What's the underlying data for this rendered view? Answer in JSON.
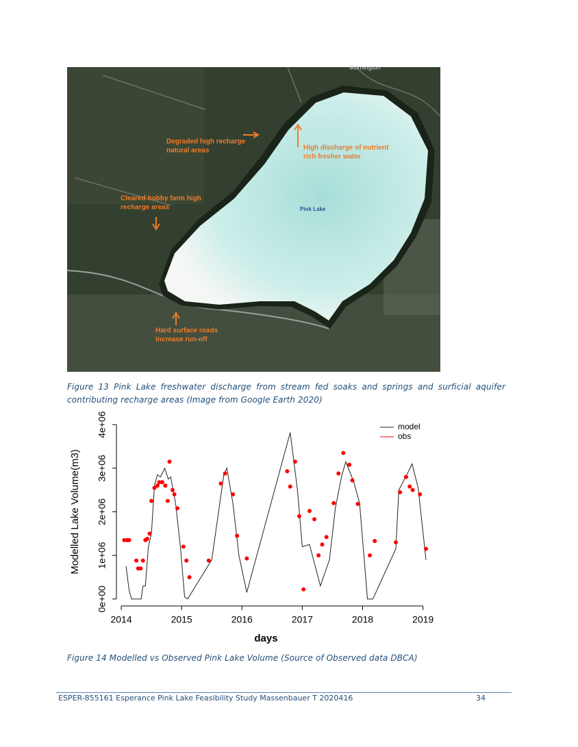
{
  "figure13": {
    "place_label": "Mornington",
    "annotations": [
      [
        "Degraded high recharge",
        "natural areas"
      ],
      [
        "High discharge of nutrient",
        "rich fresher water"
      ],
      [
        "Cleared hobby farm high",
        "recharge areas"
      ],
      [
        "Pink Lake"
      ],
      [
        "Hard surface roads",
        "increase run-off"
      ]
    ],
    "caption": "Figure 13 Pink Lake freshwater discharge from stream fed soaks and springs and surficial aquifer contributing recharge areas (Image from Google Earth 2020)"
  },
  "chart_data": {
    "type": "line",
    "xlabel": "days",
    "ylabel": "Modelled Lake Volume(m3)",
    "xlim": [
      2013.92,
      2019.22
    ],
    "ylim": [
      -160000,
      4160000
    ],
    "xticks": [
      2014,
      2015,
      2016,
      2017,
      2018,
      2019
    ],
    "yticks": [
      {
        "value": 0,
        "label": "0e+00"
      },
      {
        "value": 1000000,
        "label": "1e+06"
      },
      {
        "value": 2000000,
        "label": "2e+06"
      },
      {
        "value": 3000000,
        "label": "3e+06"
      },
      {
        "value": 4000000,
        "label": "4e+06"
      }
    ],
    "legend": "top-right",
    "series": [
      {
        "name": "model",
        "color": "#222222",
        "style": "line",
        "x": [
          2014.08,
          2014.13,
          2014.17,
          2014.33,
          2014.36,
          2014.4,
          2014.45,
          2014.5,
          2014.55,
          2014.6,
          2014.65,
          2014.72,
          2014.78,
          2014.82,
          2014.9,
          2014.98,
          2015.05,
          2015.1,
          2015.5,
          2015.7,
          2015.75,
          2015.85,
          2015.95,
          2016.08,
          2016.8,
          2016.92,
          2017.0,
          2017.12,
          2017.3,
          2017.45,
          2017.55,
          2017.65,
          2017.72,
          2017.85,
          2017.95,
          2018.08,
          2018.17,
          2018.55,
          2018.6,
          2018.75,
          2018.82,
          2018.92,
          2019.05
        ],
        "values": [
          750000,
          200000,
          0,
          0,
          300000,
          300000,
          1200000,
          1500000,
          2600000,
          2850000,
          2800000,
          3000000,
          2750000,
          2800000,
          2200000,
          1200000,
          50000,
          0,
          900000,
          2850000,
          3000000,
          2200000,
          1000000,
          150000,
          3820000,
          2500000,
          1200000,
          1250000,
          300000,
          900000,
          2100000,
          2800000,
          3150000,
          2700000,
          2200000,
          0,
          0,
          1150000,
          2500000,
          2900000,
          3100000,
          2550000,
          900000
        ]
      },
      {
        "name": "obs",
        "color": "#ff0000",
        "style": "points",
        "x": [
          2014.05,
          2014.1,
          2014.13,
          2014.25,
          2014.28,
          2014.32,
          2014.36,
          2014.4,
          2014.43,
          2014.47,
          2014.5,
          2014.55,
          2014.6,
          2014.63,
          2014.68,
          2014.73,
          2014.77,
          2014.8,
          2014.85,
          2014.88,
          2014.93,
          2015.03,
          2015.08,
          2015.13,
          2015.45,
          2015.65,
          2015.72,
          2015.85,
          2015.92,
          2016.08,
          2016.75,
          2016.8,
          2016.88,
          2016.95,
          2017.02,
          2017.12,
          2017.2,
          2017.27,
          2017.33,
          2017.4,
          2017.52,
          2017.6,
          2017.68,
          2017.78,
          2017.83,
          2017.92,
          2018.12,
          2018.2,
          2018.55,
          2018.62,
          2018.72,
          2018.78,
          2018.83,
          2018.95,
          2019.05
        ],
        "values": [
          1350000,
          1350000,
          1350000,
          880000,
          700000,
          700000,
          880000,
          1350000,
          1380000,
          1500000,
          2250000,
          2550000,
          2600000,
          2680000,
          2680000,
          2600000,
          2250000,
          3150000,
          2500000,
          2400000,
          2080000,
          1200000,
          880000,
          500000,
          880000,
          2650000,
          2880000,
          2400000,
          1450000,
          930000,
          2930000,
          2580000,
          3150000,
          1900000,
          220000,
          2020000,
          1830000,
          1000000,
          1250000,
          1420000,
          2200000,
          2880000,
          3350000,
          3080000,
          2720000,
          2180000,
          1000000,
          1330000,
          1300000,
          2450000,
          2800000,
          2580000,
          2500000,
          2400000,
          1150000
        ]
      }
    ]
  },
  "figure14": {
    "caption": "Figure 14 Modelled vs Observed Pink Lake Volume (Source of Observed data DBCA)"
  },
  "footer": {
    "text": "ESPER-855161 Esperance Pink Lake Feasibility Study Massenbauer T 2020416",
    "page": "34"
  }
}
